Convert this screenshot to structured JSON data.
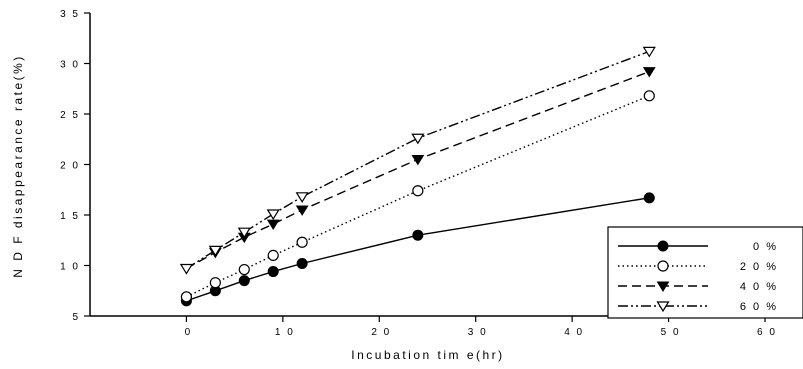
{
  "chart_data": {
    "type": "line",
    "xlabel": "Incubation tim e(hr)",
    "ylabel": "N D F  disappearance rate(%)",
    "xlim": [
      -10,
      60
    ],
    "ylim": [
      5,
      35
    ],
    "xticks": [
      0,
      10,
      20,
      30,
      40,
      50,
      60
    ],
    "yticks": [
      5,
      10,
      15,
      20,
      25,
      30,
      35
    ],
    "xtick_labels": [
      "0",
      "1 0",
      "2 0",
      "3 0",
      "4 0",
      "5 0",
      "6 0"
    ],
    "ytick_labels": [
      "5",
      "1 0",
      "1 5",
      "2 0",
      "2 5",
      "3 0",
      "3 5"
    ],
    "grid": false,
    "legend_position": "bottom-right",
    "series": [
      {
        "name": "0 %",
        "marker": "filled-circle",
        "line_style": "solid",
        "color": "#000000",
        "x": [
          0,
          3,
          6,
          9,
          12,
          24,
          48
        ],
        "y": [
          6.5,
          7.5,
          8.5,
          9.4,
          10.2,
          13.0,
          16.7
        ]
      },
      {
        "name": "2 0 %",
        "marker": "open-circle",
        "line_style": "dotted",
        "color": "#000000",
        "x": [
          0,
          3,
          6,
          9,
          12,
          24,
          48
        ],
        "y": [
          6.9,
          8.3,
          9.6,
          11.0,
          12.3,
          17.4,
          26.8
        ]
      },
      {
        "name": "4 0 %",
        "marker": "filled-triangle-down",
        "line_style": "dashed",
        "color": "#000000",
        "x": [
          0,
          3,
          6,
          9,
          12,
          24,
          48
        ],
        "y": [
          9.7,
          11.3,
          12.8,
          14.1,
          15.5,
          20.5,
          29.2
        ]
      },
      {
        "name": "6 0 %",
        "marker": "open-triangle-down",
        "line_style": "dash-dot-dot",
        "color": "#000000",
        "x": [
          0,
          3,
          6,
          9,
          12,
          24,
          48
        ],
        "y": [
          9.7,
          11.5,
          13.3,
          15.1,
          16.8,
          22.6,
          31.2
        ]
      }
    ]
  }
}
